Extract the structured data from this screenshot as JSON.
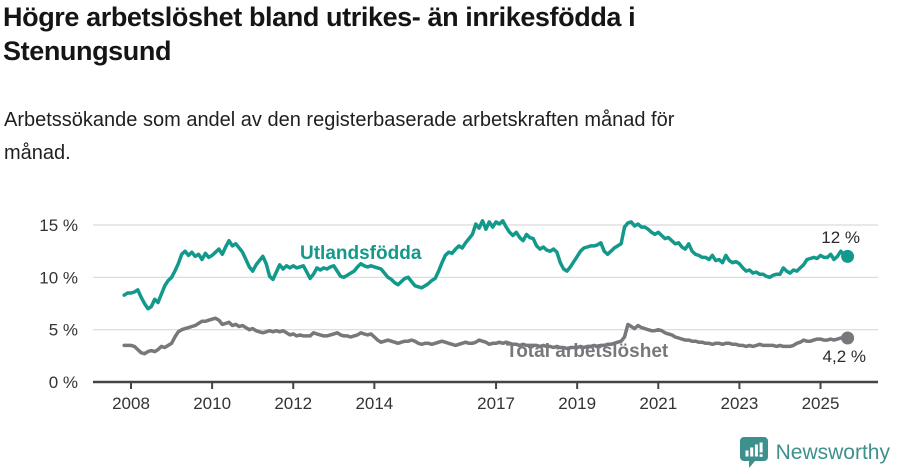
{
  "header": {
    "title": "Högre arbetslöshet bland utrikes- än inrikesfödda i Stenungsund",
    "subtitle": "Arbetssökande som andel av den registerbaserade arbetskraften månad för månad."
  },
  "footer": {
    "brand": "Newsworthy",
    "logo_icon": "newsworthy-bar-chart-bubble-icon"
  },
  "colors": {
    "foreign_born_line": "#12998c",
    "total_line": "#78787c",
    "grid": "#d9d9d9",
    "axis": "#454545",
    "tick_text": "#333333",
    "value_text": "#2b2b2b",
    "brand_teal": "#3d918c"
  },
  "chart_data": {
    "type": "line",
    "unit": "%",
    "frequency": "monthly",
    "start_year": 2007,
    "start_month": 11,
    "x_ticks": [
      2008,
      2010,
      2012,
      2014,
      2017,
      2019,
      2021,
      2023,
      2025
    ],
    "y_ticks": [
      0,
      5,
      10,
      15
    ],
    "y_tick_labels": [
      "0 %",
      "5 %",
      "10 %",
      "15 %"
    ],
    "ylim": [
      0,
      16.5
    ],
    "grid": true,
    "legend_position": "inline",
    "series": [
      {
        "name": "Utlandsfödda",
        "color": "#12998c",
        "end_label": "12 %",
        "values": [
          8.3,
          8.5,
          8.5,
          8.6,
          8.8,
          8.1,
          7.5,
          7.0,
          7.2,
          7.9,
          7.6,
          8.4,
          9.2,
          9.7,
          10.0,
          10.6,
          11.3,
          12.2,
          12.5,
          12.1,
          12.4,
          12.0,
          12.2,
          11.7,
          12.3,
          11.9,
          12.1,
          12.4,
          12.7,
          12.2,
          12.9,
          13.5,
          13.0,
          13.2,
          12.8,
          12.4,
          11.7,
          11.0,
          10.6,
          11.2,
          11.6,
          12.0,
          11.3,
          10.1,
          9.8,
          10.5,
          11.2,
          10.8,
          11.1,
          10.9,
          11.1,
          10.9,
          11.0,
          11.1,
          10.5,
          9.9,
          10.3,
          10.9,
          10.7,
          10.9,
          10.8,
          11.0,
          11.1,
          10.6,
          10.1,
          10.0,
          10.2,
          10.4,
          10.6,
          11.0,
          11.3,
          11.1,
          11.0,
          11.1,
          11.0,
          10.9,
          10.8,
          10.4,
          10.0,
          9.8,
          9.5,
          9.3,
          9.6,
          9.9,
          10.0,
          9.6,
          9.2,
          9.1,
          9.0,
          9.2,
          9.4,
          9.7,
          9.9,
          10.6,
          11.4,
          12.1,
          12.4,
          12.3,
          12.7,
          13.0,
          12.8,
          13.3,
          13.7,
          14.1,
          15.1,
          14.7,
          15.4,
          14.6,
          15.3,
          14.8,
          15.3,
          15.1,
          15.4,
          14.8,
          14.3,
          14.0,
          14.3,
          13.8,
          13.5,
          14.1,
          13.8,
          13.7,
          13.0,
          12.7,
          12.9,
          12.6,
          12.5,
          12.7,
          12.4,
          11.4,
          10.8,
          10.6,
          11.0,
          11.5,
          12.0,
          12.5,
          12.8,
          12.9,
          13.0,
          13.0,
          13.1,
          13.3,
          12.5,
          12.2,
          12.5,
          12.8,
          13.0,
          13.2,
          14.8,
          15.2,
          15.3,
          14.9,
          15.1,
          14.8,
          14.8,
          14.6,
          14.3,
          14.1,
          14.3,
          14.0,
          13.7,
          13.8,
          13.5,
          13.2,
          13.3,
          12.9,
          12.7,
          13.2,
          12.5,
          12.2,
          12.1,
          11.9,
          11.9,
          11.7,
          12.1,
          11.6,
          11.7,
          11.4,
          12.1,
          11.6,
          11.4,
          11.5,
          11.3,
          10.9,
          10.6,
          10.7,
          10.4,
          10.5,
          10.3,
          10.3,
          10.1,
          10.0,
          10.2,
          10.3,
          10.3,
          10.9,
          10.6,
          10.4,
          10.7,
          10.6,
          10.9,
          11.2,
          11.7,
          11.8,
          11.9,
          11.8,
          12.1,
          11.9,
          11.9,
          12.2,
          11.7,
          12.0,
          12.5,
          12.1,
          12.0
        ]
      },
      {
        "name": "Total arbetslöshet",
        "color": "#78787c",
        "end_label": "4,2 %",
        "values": [
          3.5,
          3.5,
          3.5,
          3.4,
          3.1,
          2.8,
          2.7,
          2.9,
          3.0,
          2.9,
          3.1,
          3.4,
          3.3,
          3.5,
          3.7,
          4.3,
          4.8,
          5.0,
          5.1,
          5.2,
          5.3,
          5.4,
          5.6,
          5.8,
          5.8,
          5.9,
          6.0,
          6.1,
          5.9,
          5.5,
          5.6,
          5.7,
          5.4,
          5.5,
          5.3,
          5.4,
          5.2,
          5.0,
          5.1,
          4.9,
          4.8,
          4.7,
          4.8,
          4.9,
          4.8,
          4.9,
          4.8,
          4.9,
          4.7,
          4.5,
          4.6,
          4.4,
          4.5,
          4.4,
          4.4,
          4.4,
          4.7,
          4.6,
          4.5,
          4.4,
          4.4,
          4.5,
          4.6,
          4.7,
          4.5,
          4.4,
          4.4,
          4.3,
          4.4,
          4.5,
          4.7,
          4.6,
          4.5,
          4.6,
          4.3,
          4.0,
          3.8,
          3.9,
          4.0,
          3.9,
          3.8,
          3.7,
          3.8,
          3.9,
          3.9,
          4.0,
          3.9,
          3.7,
          3.6,
          3.7,
          3.7,
          3.6,
          3.7,
          3.8,
          3.9,
          3.8,
          3.7,
          3.6,
          3.5,
          3.6,
          3.7,
          3.8,
          3.7,
          3.7,
          3.8,
          4.0,
          3.9,
          3.8,
          3.6,
          3.7,
          3.7,
          3.8,
          3.7,
          3.8,
          3.7,
          3.6,
          3.6,
          3.5,
          3.6,
          3.5,
          3.5,
          3.5,
          3.5,
          3.4,
          3.5,
          3.4,
          3.4,
          3.3,
          3.4,
          3.3,
          3.3,
          3.2,
          3.3,
          3.3,
          3.3,
          3.4,
          3.3,
          3.4,
          3.4,
          3.5,
          3.4,
          3.5,
          3.5,
          3.6,
          3.6,
          3.7,
          3.8,
          3.9,
          4.3,
          5.5,
          5.3,
          5.1,
          5.4,
          5.2,
          5.1,
          5.0,
          4.9,
          4.9,
          5.0,
          4.9,
          4.7,
          4.6,
          4.5,
          4.3,
          4.2,
          4.1,
          4.0,
          4.0,
          3.9,
          3.9,
          3.8,
          3.8,
          3.7,
          3.7,
          3.6,
          3.7,
          3.7,
          3.6,
          3.7,
          3.7,
          3.6,
          3.6,
          3.5,
          3.5,
          3.4,
          3.5,
          3.4,
          3.5,
          3.6,
          3.5,
          3.5,
          3.5,
          3.5,
          3.4,
          3.5,
          3.4,
          3.4,
          3.4,
          3.5,
          3.7,
          3.8,
          4.0,
          3.9,
          3.9,
          4.0,
          4.1,
          4.1,
          4.0,
          4.0,
          4.1,
          4.0,
          4.1,
          4.2,
          4.2,
          4.2
        ]
      }
    ]
  }
}
